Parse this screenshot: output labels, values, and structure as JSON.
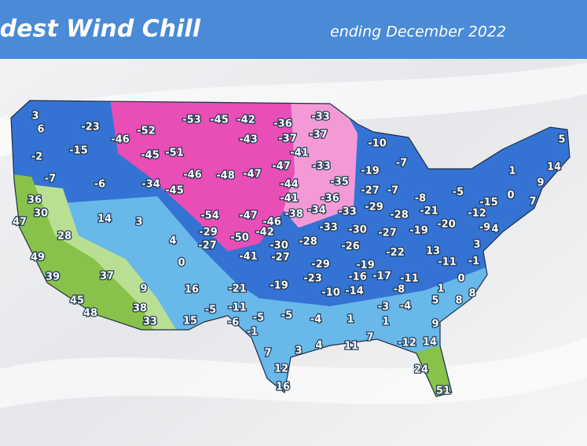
{
  "header": {
    "title": "Coldest Wind Chill",
    "subtitle": "ending December 2022"
  },
  "map": {
    "labels": [
      3,
      6,
      -23,
      -46,
      -52,
      -53,
      -45,
      -42,
      -36,
      -33,
      -37,
      -43,
      -37,
      -15,
      -2,
      -45,
      -51,
      -41,
      -10,
      5,
      -7,
      -6,
      -34,
      -46,
      -48,
      -47,
      -47,
      -33,
      -19,
      -7,
      1,
      14,
      9,
      -45,
      -44,
      -35,
      -27,
      -7,
      -5,
      0,
      36,
      -41,
      -36,
      -8,
      -15,
      7,
      30,
      14,
      3,
      -54,
      -47,
      -46,
      -38,
      -34,
      -33,
      -29,
      -28,
      -21,
      -12,
      47,
      -9,
      4,
      -20,
      -33,
      -30,
      -27,
      -19,
      28,
      -29,
      -42,
      -50,
      4,
      3,
      -27,
      -30,
      -28,
      -26,
      -22,
      13,
      -41,
      -27,
      49,
      0,
      -29,
      -19,
      -11,
      -1,
      39,
      37,
      -23,
      -16,
      -17,
      -11,
      0,
      9,
      16,
      -21,
      -19,
      -10,
      -14,
      -8,
      1,
      8,
      45,
      5,
      38,
      -11,
      -5,
      -3,
      -4,
      8,
      48,
      -6,
      -5,
      -5,
      -4,
      1,
      1,
      9,
      33,
      15,
      -1,
      7,
      3,
      4,
      11,
      7,
      -12,
      14,
      12,
      24,
      16,
      51
    ]
  }
}
